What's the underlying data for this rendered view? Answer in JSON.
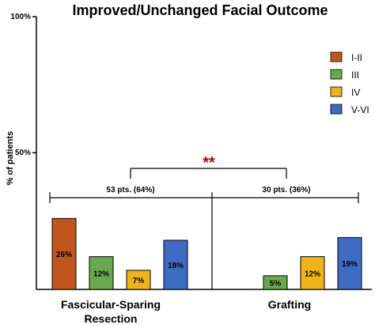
{
  "chart_data": {
    "type": "bar",
    "title": "Improved/Unchanged Facial Outcome",
    "ylabel": "% of patients",
    "ylim": [
      0,
      100
    ],
    "yticks": [
      "100%",
      "50%"
    ],
    "groups": [
      {
        "label_line1": "Fascicular-Sparing",
        "label_line2": "Resection",
        "patients": "53 pts. (64%)"
      },
      {
        "label_line1": "Grafting",
        "label_line2": "",
        "patients": "30 pts. (36%)"
      }
    ],
    "series": [
      {
        "name": "I-II",
        "color": "#c0561e",
        "values": [
          26,
          0
        ],
        "labels": [
          "26%",
          ""
        ]
      },
      {
        "name": "III",
        "color": "#6aa84f",
        "values": [
          12,
          5
        ],
        "labels": [
          "12%",
          "5%"
        ]
      },
      {
        "name": "IV",
        "color": "#f1b31c",
        "values": [
          7,
          12
        ],
        "labels": [
          "7%",
          "12%"
        ]
      },
      {
        "name": "V-VI",
        "color": "#3e6bc2",
        "values": [
          18,
          19
        ],
        "labels": [
          "18%",
          "19%"
        ]
      }
    ],
    "significance": "**",
    "legend_position": "top-right",
    "grid": false
  }
}
